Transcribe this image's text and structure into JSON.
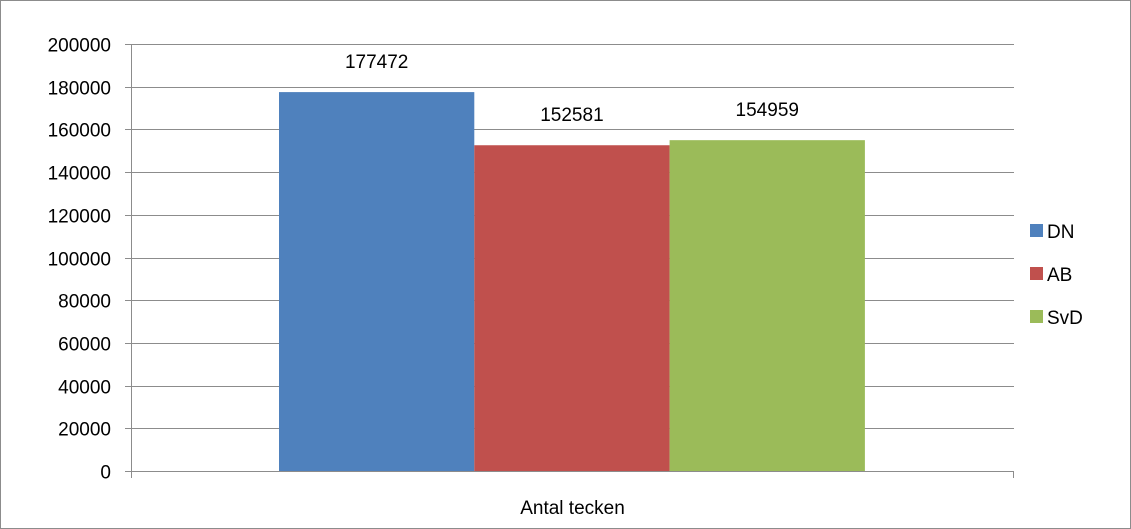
{
  "chart_data": {
    "type": "bar",
    "title": "",
    "xlabel": "",
    "ylabel": "",
    "categories": [
      "Antal tecken"
    ],
    "series": [
      {
        "name": "DN",
        "values": [
          177472
        ],
        "color": "#4f81bd"
      },
      {
        "name": "AB",
        "values": [
          152581
        ],
        "color": "#c0504d"
      },
      {
        "name": "SvD",
        "values": [
          154959
        ],
        "color": "#9bbb59"
      }
    ],
    "ylim": [
      0,
      200000
    ],
    "yticks": [
      "0",
      "20000",
      "40000",
      "60000",
      "80000",
      "100000",
      "120000",
      "140000",
      "160000",
      "180000",
      "200000"
    ],
    "grid": true,
    "legend_position": "right",
    "data_labels": true
  }
}
